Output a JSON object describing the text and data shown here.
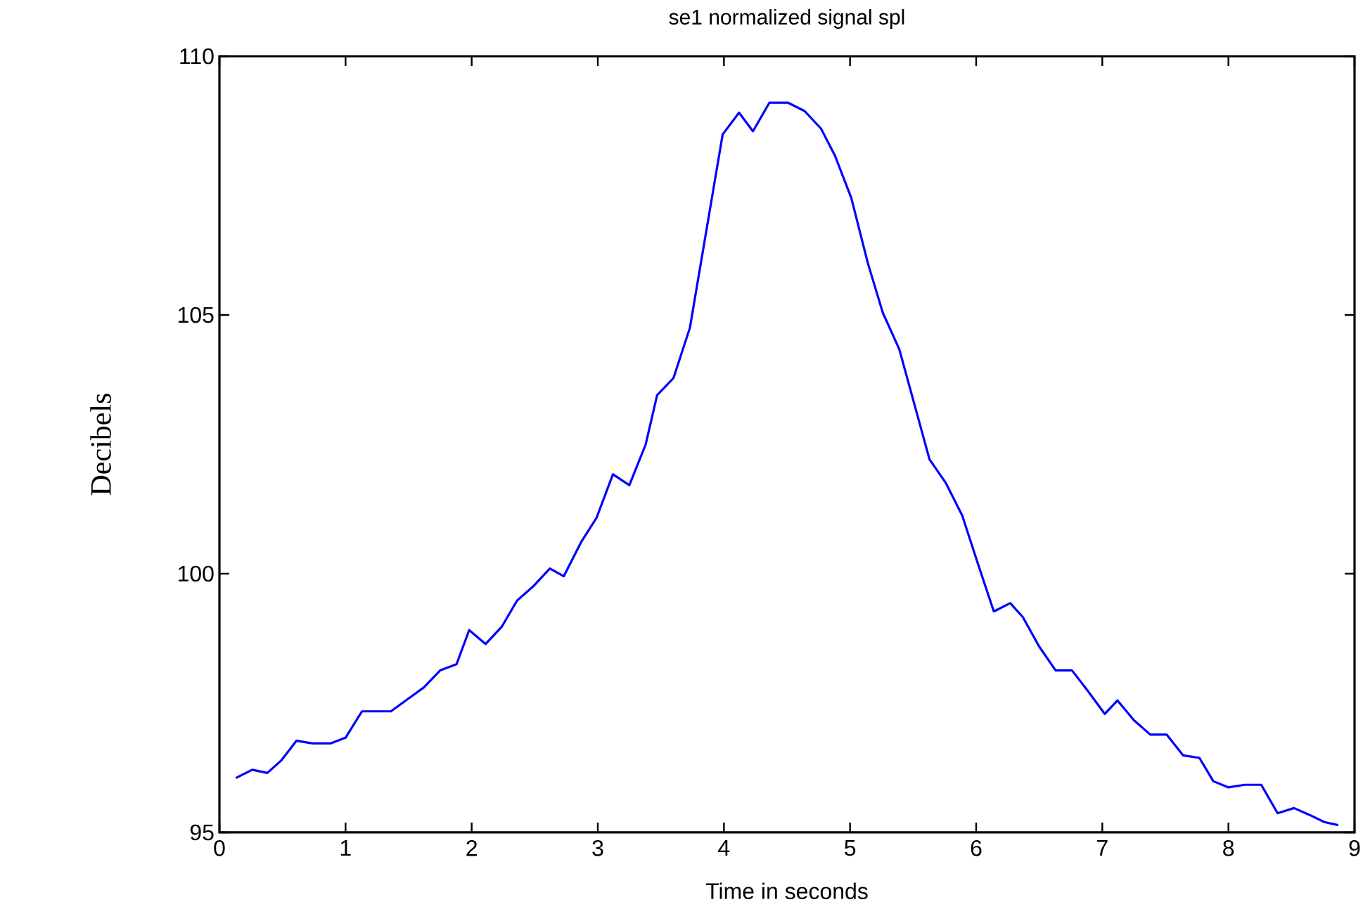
{
  "chart_data": {
    "type": "line",
    "title": "se1 normalized signal spl",
    "xlabel": "Time in seconds",
    "ylabel": "Decibels",
    "xlim": [
      0,
      9
    ],
    "ylim": [
      95,
      110
    ],
    "xticks": [
      0,
      1,
      2,
      3,
      4,
      5,
      6,
      7,
      8,
      9
    ],
    "yticks": [
      95,
      100,
      105,
      110
    ],
    "marker": "none",
    "line_style": "solid",
    "series": [
      {
        "color": "#0000ff",
        "x": [
          0.13,
          0.26,
          0.38,
          0.49,
          0.61,
          0.74,
          0.88,
          1.0,
          1.13,
          1.36,
          1.49,
          1.62,
          1.75,
          1.88,
          1.98,
          2.11,
          2.24,
          2.36,
          2.49,
          2.62,
          2.73,
          2.87,
          2.99,
          3.12,
          3.25,
          3.38,
          3.47,
          3.6,
          3.73,
          3.99,
          4.12,
          4.23,
          4.36,
          4.51,
          4.64,
          4.77,
          4.88,
          5.01,
          5.14,
          5.26,
          5.39,
          5.63,
          5.76,
          5.89,
          6.01,
          6.14,
          6.27,
          6.37,
          6.5,
          6.63,
          6.76,
          6.88,
          7.02,
          7.12,
          7.25,
          7.38,
          7.51,
          7.64,
          7.77,
          7.88,
          8.0,
          8.13,
          8.26,
          8.39,
          8.52,
          8.65,
          8.76,
          8.87
        ],
        "values": [
          96.05,
          96.21,
          96.15,
          96.39,
          96.77,
          96.72,
          96.72,
          96.83,
          97.34,
          97.34,
          97.57,
          97.8,
          98.13,
          98.25,
          98.91,
          98.64,
          98.98,
          99.48,
          99.76,
          100.1,
          99.95,
          100.62,
          101.08,
          101.92,
          101.71,
          102.5,
          103.45,
          103.78,
          104.75,
          108.49,
          108.91,
          108.55,
          109.1,
          109.1,
          108.94,
          108.6,
          108.08,
          107.26,
          106.01,
          105.04,
          104.34,
          102.21,
          101.75,
          101.12,
          100.22,
          99.27,
          99.43,
          99.16,
          98.59,
          98.13,
          98.13,
          97.75,
          97.29,
          97.55,
          97.17,
          96.89,
          96.89,
          96.49,
          96.44,
          95.99,
          95.87,
          95.92,
          95.92,
          95.37,
          95.47,
          95.33,
          95.2,
          95.14
        ]
      }
    ]
  }
}
